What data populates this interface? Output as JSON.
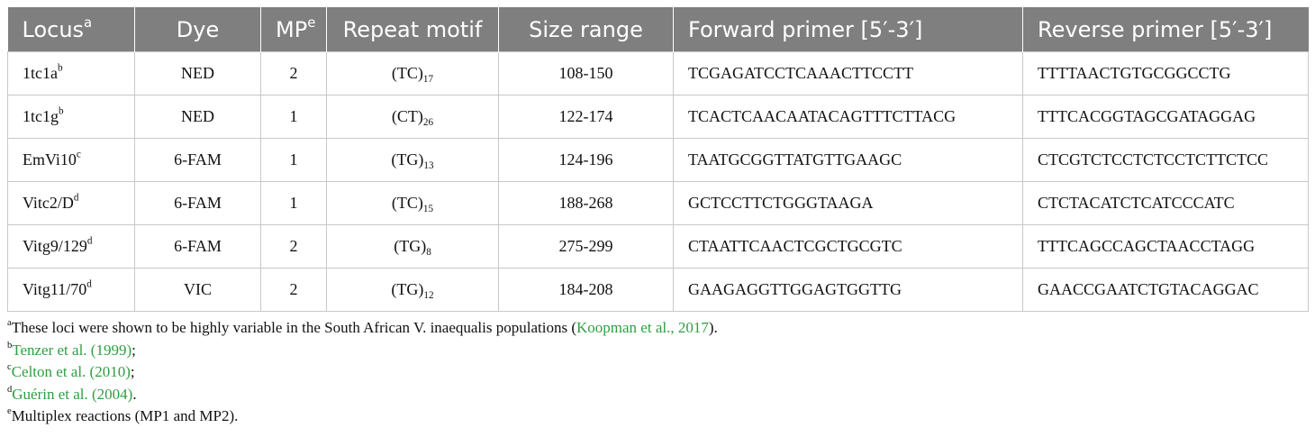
{
  "headers": {
    "locus": {
      "text": "Locus",
      "sup": "a"
    },
    "dye": "Dye",
    "mp": {
      "text": "MP",
      "sup": "e"
    },
    "motif": "Repeat motif",
    "size": "Size range",
    "fwd": "Forward primer [5′-3′]",
    "rev": "Reverse primer [5′-3′]"
  },
  "rows": [
    {
      "locus": "1tc1a",
      "sup": "b",
      "dye": "NED",
      "mp": "2",
      "motif": "(TC)",
      "motif_sub": "17",
      "size": "108-150",
      "fwd": "TCGAGATCCTCAAACTTCCTT",
      "rev": "TTTTAACTGTGCGGCCTG"
    },
    {
      "locus": "1tc1g",
      "sup": "b",
      "dye": "NED",
      "mp": "1",
      "motif": "(CT)",
      "motif_sub": "26",
      "size": "122-174",
      "fwd": "TCACTCAACAATACAGTTTCTTACG",
      "rev": "TTTCACGGTAGCGATAGGAG"
    },
    {
      "locus": "EmVi10",
      "sup": "c",
      "dye": "6-FAM",
      "mp": "1",
      "motif": "(TG)",
      "motif_sub": "13",
      "size": "124-196",
      "fwd": "TAATGCGGTTATGTTGAAGC",
      "rev": "CTCGTCTCCTCTCCTCTTCTCC"
    },
    {
      "locus": "Vitc2/D",
      "sup": "d",
      "dye": "6-FAM",
      "mp": "1",
      "motif": "(TC)",
      "motif_sub": "15",
      "size": "188-268",
      "fwd": "GCTCCTTCTGGGTAAGA",
      "rev": "CTCTACATCTCATCCCATC"
    },
    {
      "locus": "Vitg9/129",
      "sup": "d",
      "dye": "6-FAM",
      "mp": "2",
      "motif": "(TG)",
      "motif_sub": "8",
      "size": "275-299",
      "fwd": "CTAATTCAACTCGCTGCGTC",
      "rev": "TTTCAGCCAGCTAACCTAGG"
    },
    {
      "locus": "Vitg11/70",
      "sup": "d",
      "dye": "VIC",
      "mp": "2",
      "motif": "(TG)",
      "motif_sub": "12",
      "size": "184-208",
      "fwd": "GAAGAGGTTGGAGTGGTTG",
      "rev": "GAACCGAATCTGTACAGGAC"
    }
  ],
  "footnotes": {
    "a": {
      "mark": "a",
      "text": "These loci were shown to be highly variable in the South African V. inaequalis populations (",
      "ref": "Koopman et al., 2017",
      "after": ")."
    },
    "b": {
      "mark": "b",
      "ref": "Tenzer et al. (1999)",
      "after": ";"
    },
    "c": {
      "mark": "c",
      "ref": "Celton et al. (2010)",
      "after": ";"
    },
    "d": {
      "mark": "d",
      "ref": "Guérin et al. (2004)",
      "after": "."
    },
    "e": {
      "mark": "e",
      "text": "Multiplex reactions (MP1 and MP2)."
    }
  },
  "colors": {
    "header_bg": "#7f7f7f",
    "header_text": "#ffffff",
    "link": "#2e9e41",
    "border": "#c8c8c8"
  }
}
